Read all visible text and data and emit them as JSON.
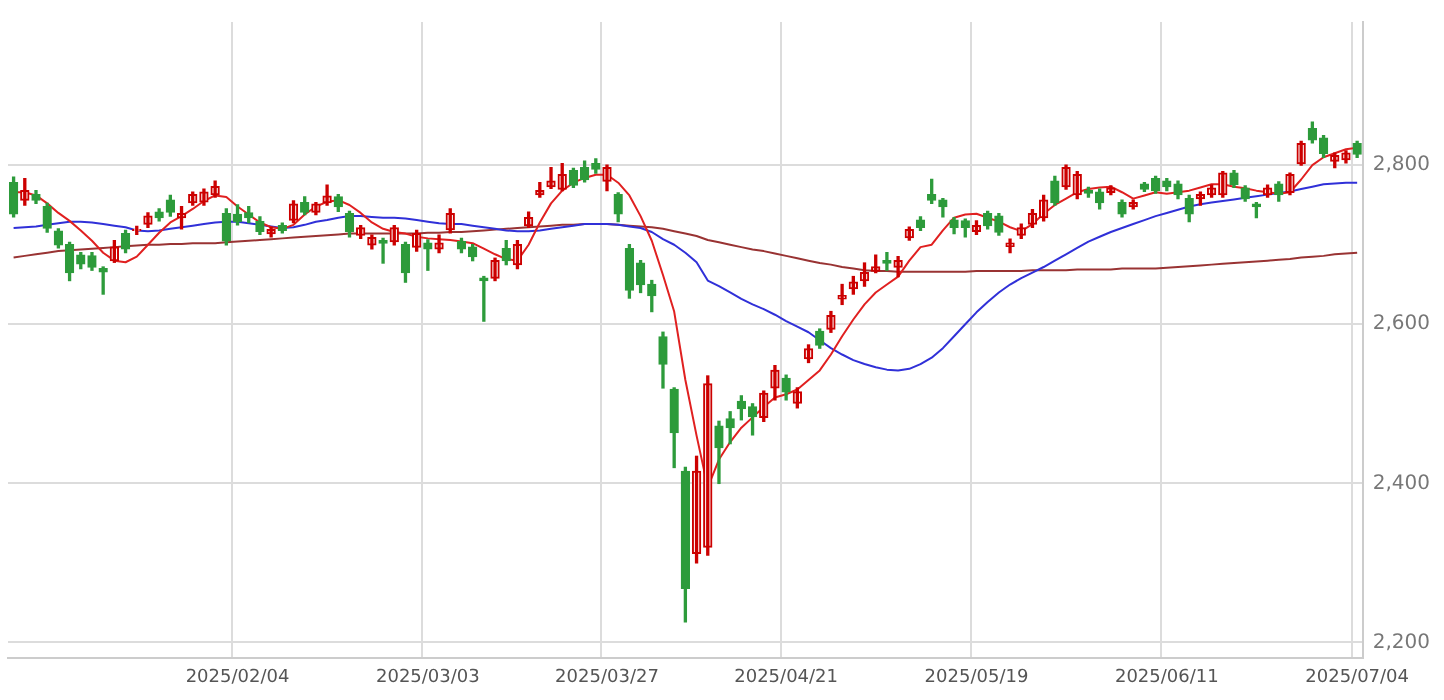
{
  "chart_data": {
    "type": "candlestick",
    "categories": [
      null,
      null,
      null,
      null,
      null,
      null,
      null,
      null,
      null,
      null,
      null,
      null,
      null,
      null,
      null,
      null,
      null,
      null,
      null,
      null,
      "2025/02/04",
      null,
      null,
      null,
      null,
      null,
      null,
      null,
      null,
      null,
      null,
      null,
      null,
      null,
      null,
      null,
      null,
      "2025/03/03",
      null,
      null,
      null,
      null,
      null,
      null,
      null,
      null,
      null,
      null,
      null,
      null,
      null,
      null,
      null,
      "2025/03/27",
      null,
      null,
      null,
      null,
      null,
      null,
      null,
      null,
      null,
      null,
      null,
      null,
      null,
      null,
      null,
      "2025/04/21",
      null,
      null,
      null,
      null,
      null,
      null,
      null,
      null,
      null,
      null,
      null,
      null,
      null,
      null,
      null,
      null,
      "2025/05/19",
      null,
      null,
      null,
      null,
      null,
      null,
      null,
      null,
      null,
      null,
      null,
      null,
      null,
      null,
      null,
      null,
      "2025/06/11",
      null,
      null,
      null,
      null,
      null,
      null,
      null,
      null,
      null,
      null,
      null,
      null,
      null,
      null,
      null,
      null,
      "2025/07/04"
    ],
    "ohlc": [
      [
        2778,
        2785,
        2735,
        2739
      ],
      [
        2756,
        2783,
        2750,
        2768
      ],
      [
        2763,
        2768,
        2752,
        2756
      ],
      [
        2748,
        2752,
        2716,
        2721
      ],
      [
        2717,
        2720,
        2696,
        2700
      ],
      [
        2700,
        2703,
        2655,
        2665
      ],
      [
        2687,
        2690,
        2670,
        2676
      ],
      [
        2686,
        2690,
        2668,
        2672
      ],
      [
        2670,
        2672,
        2638,
        2666
      ],
      [
        2680,
        2705,
        2678,
        2697
      ],
      [
        2714,
        2718,
        2690,
        2695
      ],
      [
        2718,
        2723,
        2713,
        2719
      ],
      [
        2726,
        2740,
        2722,
        2736
      ],
      [
        2741,
        2745,
        2730,
        2734
      ],
      [
        2756,
        2762,
        2736,
        2741
      ],
      [
        2734,
        2748,
        2720,
        2739
      ],
      [
        2753,
        2766,
        2750,
        2763
      ],
      [
        2754,
        2770,
        2750,
        2766
      ],
      [
        2763,
        2780,
        2760,
        2773
      ],
      [
        2739,
        2745,
        2700,
        2705
      ],
      [
        2738,
        2750,
        2725,
        2729
      ],
      [
        2740,
        2748,
        2728,
        2734
      ],
      [
        2729,
        2735,
        2713,
        2717
      ],
      [
        2714,
        2722,
        2710,
        2719
      ],
      [
        2724,
        2727,
        2715,
        2718
      ],
      [
        2731,
        2755,
        2728,
        2751
      ],
      [
        2753,
        2760,
        2738,
        2741
      ],
      [
        2741,
        2753,
        2738,
        2751
      ],
      [
        2753,
        2775,
        2750,
        2761
      ],
      [
        2760,
        2763,
        2742,
        2748
      ],
      [
        2739,
        2742,
        2710,
        2717
      ],
      [
        2712,
        2724,
        2708,
        2721
      ],
      [
        2700,
        2712,
        2695,
        2709
      ],
      [
        2705,
        2708,
        2677,
        2702
      ],
      [
        2704,
        2724,
        2700,
        2721
      ],
      [
        2700,
        2703,
        2653,
        2665
      ],
      [
        2697,
        2718,
        2692,
        2714
      ],
      [
        2702,
        2706,
        2668,
        2695
      ],
      [
        2695,
        2712,
        2690,
        2702
      ],
      [
        2719,
        2745,
        2715,
        2739
      ],
      [
        2704,
        2708,
        2690,
        2695
      ],
      [
        2697,
        2700,
        2680,
        2685
      ],
      [
        2658,
        2660,
        2604,
        2655
      ],
      [
        2658,
        2683,
        2655,
        2680
      ],
      [
        2695,
        2705,
        2675,
        2680
      ],
      [
        2675,
        2705,
        2670,
        2700
      ],
      [
        2724,
        2741,
        2722,
        2734
      ],
      [
        2763,
        2778,
        2760,
        2768
      ],
      [
        2773,
        2797,
        2771,
        2780
      ],
      [
        2770,
        2802,
        2768,
        2788
      ],
      [
        2793,
        2796,
        2772,
        2775
      ],
      [
        2797,
        2805,
        2779,
        2782
      ],
      [
        2802,
        2808,
        2790,
        2795
      ],
      [
        2780,
        2800,
        2768,
        2797
      ],
      [
        2763,
        2765,
        2729,
        2739
      ],
      [
        2695,
        2700,
        2633,
        2643
      ],
      [
        2677,
        2680,
        2640,
        2650
      ],
      [
        2650,
        2655,
        2616,
        2636
      ],
      [
        2584,
        2590,
        2520,
        2550
      ],
      [
        2518,
        2520,
        2420,
        2464
      ],
      [
        2415,
        2420,
        2226,
        2268
      ],
      [
        2312,
        2434,
        2300,
        2415
      ],
      [
        2320,
        2535,
        2310,
        2525
      ],
      [
        2472,
        2478,
        2400,
        2445
      ],
      [
        2481,
        2490,
        2450,
        2470
      ],
      [
        2503,
        2510,
        2480,
        2494
      ],
      [
        2496,
        2500,
        2461,
        2484
      ],
      [
        2483,
        2516,
        2478,
        2513
      ],
      [
        2520,
        2548,
        2505,
        2542
      ],
      [
        2532,
        2536,
        2505,
        2515
      ],
      [
        2501,
        2520,
        2495,
        2515
      ],
      [
        2557,
        2574,
        2552,
        2569
      ],
      [
        2591,
        2594,
        2570,
        2574
      ],
      [
        2594,
        2616,
        2590,
        2611
      ],
      [
        2632,
        2650,
        2625,
        2636
      ],
      [
        2645,
        2660,
        2638,
        2653
      ],
      [
        2655,
        2677,
        2648,
        2665
      ],
      [
        2667,
        2687,
        2665,
        2672
      ],
      [
        2680,
        2690,
        2668,
        2677
      ],
      [
        2672,
        2685,
        2660,
        2680
      ],
      [
        2709,
        2722,
        2706,
        2719
      ],
      [
        2731,
        2735,
        2718,
        2722
      ],
      [
        2763,
        2782,
        2752,
        2756
      ],
      [
        2756,
        2758,
        2735,
        2748
      ],
      [
        2731,
        2734,
        2714,
        2722
      ],
      [
        2730,
        2732,
        2710,
        2722
      ],
      [
        2717,
        2730,
        2713,
        2724
      ],
      [
        2739,
        2742,
        2720,
        2724
      ],
      [
        2736,
        2739,
        2712,
        2716
      ],
      [
        2698,
        2707,
        2690,
        2702
      ],
      [
        2712,
        2726,
        2708,
        2721
      ],
      [
        2726,
        2744,
        2722,
        2739
      ],
      [
        2734,
        2762,
        2730,
        2756
      ],
      [
        2780,
        2786,
        2750,
        2753
      ],
      [
        2773,
        2800,
        2770,
        2797
      ],
      [
        2763,
        2792,
        2758,
        2788
      ],
      [
        2768,
        2772,
        2760,
        2765
      ],
      [
        2766,
        2770,
        2745,
        2753
      ],
      [
        2766,
        2774,
        2763,
        2771
      ],
      [
        2753,
        2756,
        2735,
        2739
      ],
      [
        2748,
        2756,
        2745,
        2753
      ],
      [
        2776,
        2778,
        2767,
        2770
      ],
      [
        2783,
        2786,
        2765,
        2768
      ],
      [
        2780,
        2783,
        2768,
        2773
      ],
      [
        2776,
        2780,
        2758,
        2763
      ],
      [
        2758,
        2762,
        2729,
        2739
      ],
      [
        2758,
        2766,
        2750,
        2763
      ],
      [
        2763,
        2775,
        2760,
        2771
      ],
      [
        2763,
        2792,
        2760,
        2790
      ],
      [
        2790,
        2793,
        2772,
        2776
      ],
      [
        2771,
        2774,
        2755,
        2758
      ],
      [
        2751,
        2753,
        2734,
        2748
      ],
      [
        2763,
        2775,
        2760,
        2771
      ],
      [
        2776,
        2779,
        2755,
        2763
      ],
      [
        2766,
        2790,
        2763,
        2788
      ],
      [
        2802,
        2830,
        2800,
        2827
      ],
      [
        2846,
        2854,
        2828,
        2832
      ],
      [
        2834,
        2837,
        2810,
        2815
      ],
      [
        2805,
        2815,
        2797,
        2812
      ],
      [
        2807,
        2818,
        2803,
        2815
      ],
      [
        2827,
        2830,
        2810,
        2814
      ]
    ],
    "colors": [
      "#2d9b3b",
      "#cc0000",
      "#2d9b3b",
      "#2d9b3b",
      "#2d9b3b",
      "#2d9b3b",
      "#2d9b3b",
      "#2d9b3b",
      "#2d9b3b",
      "#cc0000",
      "#2d9b3b",
      "#cc0000",
      "#cc0000",
      "#2d9b3b",
      "#2d9b3b",
      "#cc0000",
      "#cc0000",
      "#cc0000",
      "#cc0000",
      "#2d9b3b",
      "#2d9b3b",
      "#2d9b3b",
      "#2d9b3b",
      "#cc0000",
      "#2d9b3b",
      "#cc0000",
      "#2d9b3b",
      "#cc0000",
      "#cc0000",
      "#2d9b3b",
      "#2d9b3b",
      "#cc0000",
      "#cc0000",
      "#2d9b3b",
      "#cc0000",
      "#2d9b3b",
      "#cc0000",
      "#2d9b3b",
      "#cc0000",
      "#cc0000",
      "#2d9b3b",
      "#2d9b3b",
      "#2d9b3b",
      "#cc0000",
      "#2d9b3b",
      "#cc0000",
      "#cc0000",
      "#cc0000",
      "#cc0000",
      "#cc0000",
      "#2d9b3b",
      "#2d9b3b",
      "#2d9b3b",
      "#cc0000",
      "#2d9b3b",
      "#2d9b3b",
      "#2d9b3b",
      "#2d9b3b",
      "#2d9b3b",
      "#2d9b3b",
      "#2d9b3b",
      "#cc0000",
      "#cc0000",
      "#2d9b3b",
      "#2d9b3b",
      "#2d9b3b",
      "#2d9b3b",
      "#cc0000",
      "#cc0000",
      "#2d9b3b",
      "#cc0000",
      "#cc0000",
      "#2d9b3b",
      "#cc0000",
      "#cc0000",
      "#cc0000",
      "#cc0000",
      "#cc0000",
      "#2d9b3b",
      "#cc0000",
      "#cc0000",
      "#2d9b3b",
      "#2d9b3b",
      "#2d9b3b",
      "#2d9b3b",
      "#2d9b3b",
      "#cc0000",
      "#2d9b3b",
      "#2d9b3b",
      "#cc0000",
      "#cc0000",
      "#cc0000",
      "#cc0000",
      "#2d9b3b",
      "#cc0000",
      "#cc0000",
      "#2d9b3b",
      "#2d9b3b",
      "#cc0000",
      "#2d9b3b",
      "#cc0000",
      "#2d9b3b",
      "#2d9b3b",
      "#2d9b3b",
      "#2d9b3b",
      "#2d9b3b",
      "#cc0000",
      "#cc0000",
      "#cc0000",
      "#2d9b3b",
      "#2d9b3b",
      "#2d9b3b",
      "#cc0000",
      "#2d9b3b",
      "#cc0000",
      "#cc0000",
      "#2d9b3b",
      "#2d9b3b",
      "#cc0000",
      "#cc0000",
      "#2d9b3b"
    ],
    "series": [
      {
        "type": "line",
        "color": "#e02020",
        "values": [
          2766,
          2766,
          2762,
          2752,
          2740,
          2730,
          2718,
          2705,
          2690,
          2680,
          2678,
          2685,
          2700,
          2715,
          2728,
          2736,
          2745,
          2755,
          2762,
          2760,
          2748,
          2738,
          2728,
          2722,
          2720,
          2725,
          2738,
          2748,
          2754,
          2756,
          2750,
          2740,
          2728,
          2720,
          2716,
          2714,
          2710,
          2708,
          2707,
          2706,
          2704,
          2702,
          2695,
          2688,
          2682,
          2680,
          2700,
          2728,
          2752,
          2768,
          2778,
          2784,
          2788,
          2788,
          2778,
          2762,
          2736,
          2705,
          2662,
          2616,
          2530,
          2460,
          2395,
          2430,
          2452,
          2470,
          2483,
          2496,
          2508,
          2512,
          2518,
          2530,
          2542,
          2562,
          2585,
          2606,
          2625,
          2640,
          2650,
          2660,
          2680,
          2697,
          2700,
          2718,
          2734,
          2738,
          2739,
          2734,
          2729,
          2722,
          2717,
          2726,
          2739,
          2750,
          2758,
          2766,
          2770,
          2772,
          2773,
          2766,
          2758,
          2762,
          2766,
          2764,
          2766,
          2768,
          2772,
          2776,
          2776,
          2773,
          2771,
          2768,
          2766,
          2764,
          2766,
          2782,
          2800,
          2810,
          2815,
          2820,
          2822
        ]
      },
      {
        "type": "line",
        "color": "#3030d8",
        "values": [
          2721,
          2722,
          2723,
          2725,
          2727,
          2729,
          2729,
          2728,
          2726,
          2724,
          2722,
          2718,
          2717,
          2718,
          2720,
          2722,
          2724,
          2726,
          2728,
          2729,
          2729,
          2727,
          2725,
          2723,
          2721,
          2722,
          2725,
          2729,
          2731,
          2734,
          2736,
          2736,
          2735,
          2734,
          2734,
          2733,
          2731,
          2729,
          2727,
          2726,
          2726,
          2724,
          2722,
          2720,
          2718,
          2717,
          2717,
          2718,
          2720,
          2722,
          2724,
          2726,
          2726,
          2726,
          2725,
          2723,
          2721,
          2716,
          2707,
          2700,
          2690,
          2678,
          2655,
          2648,
          2640,
          2632,
          2625,
          2619,
          2612,
          2604,
          2597,
          2590,
          2580,
          2570,
          2562,
          2555,
          2550,
          2546,
          2543,
          2542,
          2544,
          2550,
          2558,
          2570,
          2585,
          2600,
          2615,
          2628,
          2640,
          2650,
          2658,
          2665,
          2672,
          2680,
          2688,
          2696,
          2704,
          2710,
          2716,
          2721,
          2726,
          2731,
          2736,
          2740,
          2744,
          2748,
          2751,
          2753,
          2755,
          2757,
          2759,
          2761,
          2763,
          2765,
          2767,
          2770,
          2773,
          2776,
          2777,
          2778,
          2778
        ]
      },
      {
        "type": "line",
        "color": "#993333",
        "values": [
          2684,
          2686,
          2688,
          2690,
          2692,
          2693,
          2694,
          2695,
          2696,
          2697,
          2698,
          2699,
          2700,
          2700,
          2701,
          2701,
          2702,
          2702,
          2702,
          2703,
          2704,
          2705,
          2706,
          2707,
          2708,
          2709,
          2710,
          2711,
          2712,
          2713,
          2714,
          2714,
          2714,
          2714,
          2714,
          2714,
          2714,
          2715,
          2715,
          2716,
          2716,
          2717,
          2718,
          2719,
          2720,
          2721,
          2722,
          2723,
          2724,
          2725,
          2725,
          2726,
          2726,
          2726,
          2725,
          2724,
          2723,
          2722,
          2720,
          2717,
          2714,
          2711,
          2706,
          2703,
          2700,
          2697,
          2694,
          2692,
          2689,
          2686,
          2683,
          2680,
          2677,
          2675,
          2672,
          2670,
          2668,
          2667,
          2667,
          2666,
          2666,
          2666,
          2666,
          2666,
          2666,
          2666,
          2667,
          2667,
          2667,
          2667,
          2667,
          2668,
          2668,
          2668,
          2668,
          2669,
          2669,
          2669,
          2669,
          2670,
          2670,
          2670,
          2670,
          2671,
          2672,
          2673,
          2674,
          2675,
          2676,
          2677,
          2678,
          2679,
          2680,
          2681,
          2682,
          2684,
          2685,
          2686,
          2688,
          2689,
          2690
        ]
      }
    ],
    "ylim": [
      2180,
      2980
    ],
    "yticks": [
      {
        "value": 2200,
        "label": "2,200"
      },
      {
        "value": 2400,
        "label": "2,400"
      },
      {
        "value": 2600,
        "label": "2,600"
      },
      {
        "value": 2800,
        "label": "2,800"
      }
    ],
    "grid": true
  }
}
